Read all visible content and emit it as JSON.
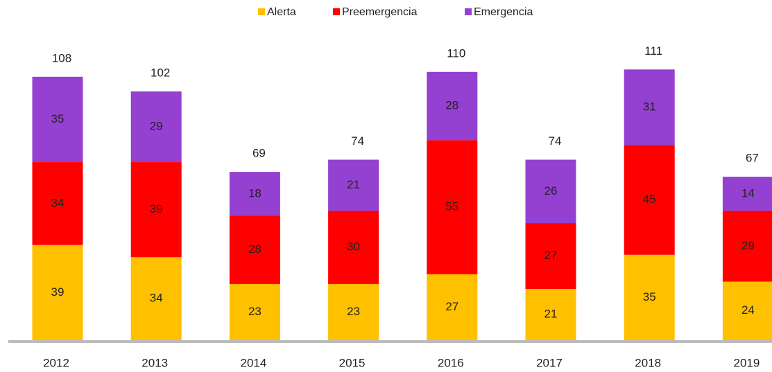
{
  "chart_data": {
    "type": "stacked_bar",
    "categories": [
      "2012",
      "2013",
      "2014",
      "2015",
      "2016",
      "2017",
      "2018",
      "2019"
    ],
    "series": [
      {
        "name": "Alerta",
        "color": "#ffc000",
        "values": [
          39,
          34,
          23,
          23,
          27,
          21,
          35,
          24
        ]
      },
      {
        "name": "Preemergencia",
        "color": "#ff0000",
        "values": [
          34,
          39,
          28,
          30,
          55,
          27,
          45,
          29
        ]
      },
      {
        "name": "Emergencia",
        "color": "#9440d0",
        "values": [
          35,
          29,
          18,
          21,
          28,
          26,
          31,
          14
        ]
      }
    ],
    "totals": [
      108,
      102,
      69,
      74,
      110,
      74,
      111,
      67
    ],
    "legend": "top"
  }
}
